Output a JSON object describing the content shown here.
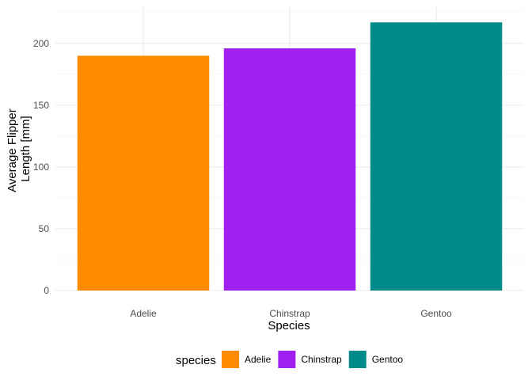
{
  "chart_data": {
    "type": "bar",
    "categories": [
      "Adelie",
      "Chinstrap",
      "Gentoo"
    ],
    "values": [
      190,
      196,
      217
    ],
    "colors": [
      "#FF8C00",
      "#A020F0",
      "#008B8B"
    ],
    "xlabel": "Species",
    "ylabel": [
      "Average Flipper",
      "Length [mm]"
    ],
    "ylim": [
      0,
      230
    ],
    "yticks": [
      0,
      50,
      100,
      150,
      200
    ],
    "grid": true,
    "legend": {
      "title": "species",
      "position": "bottom",
      "entries": [
        "Adelie",
        "Chinstrap",
        "Gentoo"
      ]
    }
  }
}
